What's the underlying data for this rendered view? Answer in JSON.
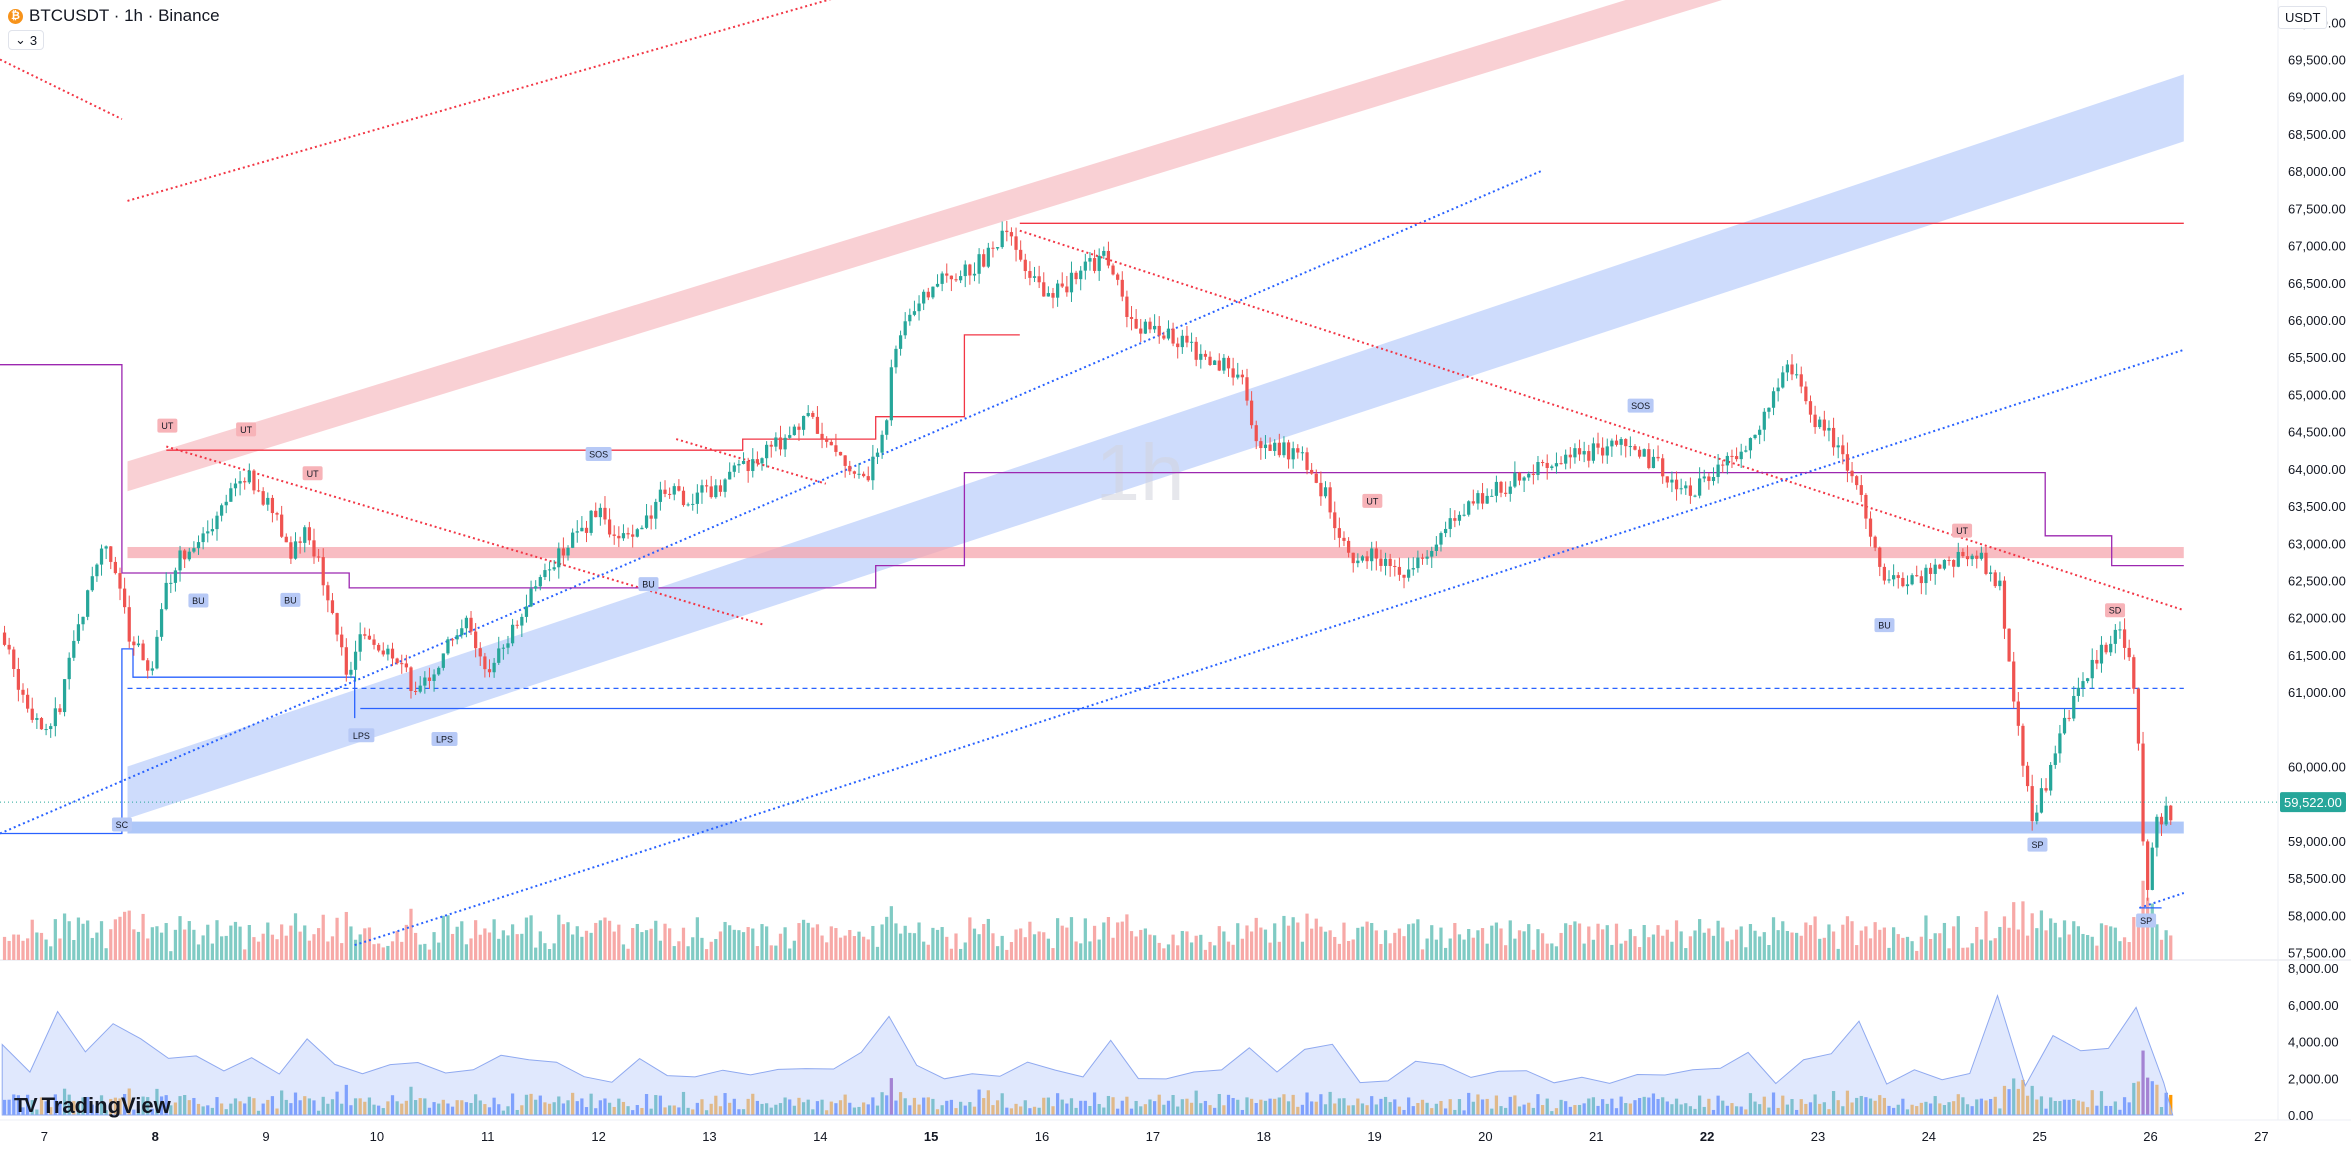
{
  "header": {
    "symbol_line": "BTCUSDT · 1h · Binance",
    "indicator_count": "3",
    "currency_unit": "USDT",
    "watermark": "1h",
    "brand": "TradingView"
  },
  "colors": {
    "up": "#26a69a",
    "down": "#ef5350",
    "blue_line": "#2962ff",
    "red_line": "#f23645",
    "purple_line": "#9c27b0",
    "blue_channel": "#c6d6fb",
    "red_channel": "#f8c8cc"
  },
  "chart_data": {
    "type": "line",
    "y_axis": {
      "ticks": [
        "70,000.00",
        "69,500.00",
        "69,000.00",
        "68,500.00",
        "68,000.00",
        "67,500.00",
        "67,000.00",
        "66,500.00",
        "66,000.00",
        "65,500.00",
        "65,000.00",
        "64,500.00",
        "64,000.00",
        "63,500.00",
        "63,000.00",
        "62,500.00",
        "62,000.00",
        "61,500.00",
        "61,000.00",
        "60,000.00",
        "59,000.00",
        "58,500.00",
        "58,000.00",
        "57,500.00"
      ],
      "range": [
        57400,
        70300
      ]
    },
    "current_price": "59,522.00",
    "current_price_value": 59522,
    "lower_pane": {
      "ticks": [
        "8,000.00",
        "6,000.00",
        "4,000.00",
        "2,000.00",
        "0.00"
      ],
      "range": [
        0,
        8000
      ]
    },
    "x_axis": {
      "ticks": [
        "7",
        "8",
        "9",
        "10",
        "11",
        "12",
        "13",
        "14",
        "15",
        "16",
        "17",
        "18",
        "19",
        "20",
        "21",
        "22",
        "23",
        "24",
        "25",
        "26",
        "27"
      ],
      "bold_ticks": [
        "8",
        "15",
        "22"
      ],
      "range": [
        6.6,
        27.15
      ]
    },
    "price_path": [
      [
        6.62,
        61800
      ],
      [
        6.85,
        60900
      ],
      [
        7.0,
        60500
      ],
      [
        7.15,
        60700
      ],
      [
        7.3,
        61700
      ],
      [
        7.45,
        62600
      ],
      [
        7.58,
        63000
      ],
      [
        7.68,
        62500
      ],
      [
        7.8,
        61700
      ],
      [
        8.0,
        61200
      ],
      [
        8.1,
        62400
      ],
      [
        8.25,
        62800
      ],
      [
        8.5,
        63200
      ],
      [
        8.8,
        64000
      ],
      [
        9.05,
        63500
      ],
      [
        9.25,
        62900
      ],
      [
        9.4,
        63200
      ],
      [
        9.55,
        62500
      ],
      [
        9.75,
        61200
      ],
      [
        9.85,
        61700
      ],
      [
        10.1,
        61600
      ],
      [
        10.35,
        61100
      ],
      [
        10.55,
        61300
      ],
      [
        10.8,
        62000
      ],
      [
        11.0,
        61200
      ],
      [
        11.2,
        61700
      ],
      [
        11.5,
        62600
      ],
      [
        11.8,
        63100
      ],
      [
        12.0,
        63400
      ],
      [
        12.3,
        63000
      ],
      [
        12.6,
        63700
      ],
      [
        12.9,
        63600
      ],
      [
        13.2,
        63900
      ],
      [
        13.6,
        64300
      ],
      [
        13.9,
        64700
      ],
      [
        14.2,
        64200
      ],
      [
        14.45,
        63900
      ],
      [
        14.6,
        64500
      ],
      [
        14.7,
        65700
      ],
      [
        14.9,
        66300
      ],
      [
        15.1,
        66500
      ],
      [
        15.5,
        66800
      ],
      [
        15.7,
        67200
      ],
      [
        15.9,
        66700
      ],
      [
        16.1,
        66300
      ],
      [
        16.35,
        66600
      ],
      [
        16.6,
        66900
      ],
      [
        16.8,
        66000
      ],
      [
        17.0,
        65900
      ],
      [
        17.3,
        65700
      ],
      [
        17.6,
        65400
      ],
      [
        17.85,
        65300
      ],
      [
        17.9,
        64500
      ],
      [
        18.1,
        64300
      ],
      [
        18.35,
        64200
      ],
      [
        18.6,
        63600
      ],
      [
        18.8,
        62700
      ],
      [
        19.0,
        62900
      ],
      [
        19.3,
        62600
      ],
      [
        19.55,
        63000
      ],
      [
        19.8,
        63400
      ],
      [
        20.1,
        63700
      ],
      [
        20.4,
        63900
      ],
      [
        20.65,
        64100
      ],
      [
        20.9,
        64200
      ],
      [
        21.1,
        64300
      ],
      [
        21.35,
        64300
      ],
      [
        21.6,
        64000
      ],
      [
        21.8,
        63700
      ],
      [
        22.0,
        63800
      ],
      [
        22.3,
        64200
      ],
      [
        22.5,
        64600
      ],
      [
        22.75,
        65500
      ],
      [
        22.95,
        64700
      ],
      [
        23.15,
        64400
      ],
      [
        23.4,
        63700
      ],
      [
        23.6,
        62500
      ],
      [
        23.8,
        62400
      ],
      [
        24.1,
        62700
      ],
      [
        24.4,
        62900
      ],
      [
        24.65,
        62500
      ],
      [
        24.8,
        60800
      ],
      [
        24.95,
        59200
      ],
      [
        25.1,
        59900
      ],
      [
        25.3,
        60800
      ],
      [
        25.55,
        61500
      ],
      [
        25.75,
        61900
      ],
      [
        25.85,
        61300
      ],
      [
        25.92,
        60100
      ],
      [
        25.98,
        58200
      ],
      [
        26.05,
        59200
      ],
      [
        26.15,
        59400
      ],
      [
        26.2,
        59300
      ]
    ],
    "bands": [
      {
        "name": "",
        "color": "red",
        "lower": [
          [
            7.75,
            63700
          ],
          [
            27.15,
            72600
          ]
        ],
        "upper": [
          [
            7.75,
            64100
          ],
          [
            27.15,
            73000
          ]
        ]
      },
      {
        "name": "",
        "color": "blue",
        "lower": [
          [
            7.75,
            59300
          ],
          [
            26.3,
            68400
          ]
        ],
        "upper": [
          [
            7.75,
            60000
          ],
          [
            26.3,
            69300
          ]
        ]
      }
    ],
    "zones": [
      {
        "color": "red",
        "x": [
          7.75,
          26.3
        ],
        "y": [
          62800,
          62950
        ]
      },
      {
        "color": "blue",
        "x": [
          7.75,
          26.3
        ],
        "y": [
          59100,
          59260
        ]
      }
    ],
    "lines": [
      {
        "color": "red",
        "style": "dotted",
        "points": [
          [
            6.6,
            69500
          ],
          [
            7.7,
            68700
          ]
        ]
      },
      {
        "color": "red",
        "style": "dotted",
        "points": [
          [
            7.75,
            67600
          ],
          [
            14.3,
            70400
          ]
        ]
      },
      {
        "color": "red",
        "style": "dotted",
        "points": [
          [
            8.1,
            64300
          ],
          [
            13.5,
            61900
          ]
        ]
      },
      {
        "color": "red",
        "style": "dotted",
        "points": [
          [
            12.7,
            64400
          ],
          [
            14.05,
            63800
          ]
        ]
      },
      {
        "color": "red",
        "style": "dotted",
        "points": [
          [
            15.8,
            67200
          ],
          [
            26.3,
            62100
          ]
        ]
      },
      {
        "color": "blue",
        "style": "dotted",
        "points": [
          [
            6.6,
            59100
          ],
          [
            20.5,
            68000
          ]
        ]
      },
      {
        "color": "blue",
        "style": "dotted",
        "points": [
          [
            9.8,
            57600
          ],
          [
            26.3,
            65600
          ]
        ]
      },
      {
        "color": "blue",
        "style": "dotted",
        "points": [
          [
            25.9,
            58100
          ],
          [
            26.3,
            58300
          ]
        ]
      },
      {
        "color": "red",
        "style": "solid",
        "points": [
          [
            15.8,
            67300
          ],
          [
            26.3,
            67300
          ]
        ]
      },
      {
        "color": "red",
        "style": "solid",
        "points": [
          [
            8.1,
            64250
          ],
          [
            13.3,
            64250
          ],
          [
            13.3,
            64400
          ],
          [
            14.5,
            64400
          ],
          [
            14.5,
            64700
          ],
          [
            15.3,
            64700
          ],
          [
            15.3,
            65800
          ],
          [
            15.8,
            65800
          ]
        ]
      },
      {
        "color": "blue",
        "style": "solid",
        "points": [
          [
            9.85,
            60780
          ],
          [
            25.9,
            60780
          ]
        ]
      },
      {
        "color": "blue",
        "style": "solid",
        "points": [
          [
            6.6,
            59100
          ],
          [
            7.7,
            59100
          ],
          [
            7.7,
            61580
          ],
          [
            7.8,
            61580
          ],
          [
            7.8,
            61200
          ],
          [
            9.8,
            61200
          ],
          [
            9.8,
            60650
          ]
        ]
      },
      {
        "color": "blue",
        "style": "solid",
        "points": [
          [
            25.9,
            58100
          ],
          [
            26.1,
            58100
          ]
        ]
      },
      {
        "color": "blue",
        "style": "dashed",
        "points": [
          [
            7.75,
            61050
          ],
          [
            26.3,
            61050
          ]
        ]
      },
      {
        "color": "purple",
        "style": "solid",
        "points": [
          [
            6.6,
            65400
          ],
          [
            7.7,
            65400
          ],
          [
            7.7,
            62600
          ],
          [
            9.75,
            62600
          ],
          [
            9.75,
            62400
          ],
          [
            14.5,
            62400
          ],
          [
            14.5,
            62700
          ],
          [
            15.3,
            62700
          ],
          [
            15.3,
            63950
          ],
          [
            25.05,
            63950
          ],
          [
            25.05,
            63100
          ],
          [
            25.65,
            63100
          ],
          [
            25.65,
            62700
          ],
          [
            26.3,
            62700
          ]
        ]
      }
    ],
    "labels": [
      {
        "text": "UT",
        "color": "red",
        "x": 8.11,
        "y": 64580
      },
      {
        "text": "UT",
        "color": "red",
        "x": 8.82,
        "y": 64530
      },
      {
        "text": "UT",
        "color": "red",
        "x": 9.42,
        "y": 63940
      },
      {
        "text": "BU",
        "color": "blue",
        "x": 8.39,
        "y": 62230
      },
      {
        "text": "BU",
        "color": "blue",
        "x": 9.22,
        "y": 62240
      },
      {
        "text": "SOS",
        "color": "blue",
        "x": 12.0,
        "y": 64200
      },
      {
        "text": "BU",
        "color": "blue",
        "x": 12.45,
        "y": 62450
      },
      {
        "text": "LPS",
        "color": "blue",
        "x": 9.86,
        "y": 60420
      },
      {
        "text": "LPS",
        "color": "blue",
        "x": 10.61,
        "y": 60370
      },
      {
        "text": "SC",
        "color": "blue",
        "x": 7.7,
        "y": 59220
      },
      {
        "text": "UT",
        "color": "red",
        "x": 18.98,
        "y": 63570
      },
      {
        "text": "SOS",
        "color": "blue",
        "x": 21.4,
        "y": 64850
      },
      {
        "text": "BU",
        "color": "blue",
        "x": 23.6,
        "y": 61900
      },
      {
        "text": "UT",
        "color": "red",
        "x": 24.3,
        "y": 63170
      },
      {
        "text": "SD",
        "color": "red",
        "x": 25.68,
        "y": 62100
      },
      {
        "text": "SP",
        "color": "blue",
        "x": 24.98,
        "y": 58950
      },
      {
        "text": "SP",
        "color": "blue",
        "x": 25.96,
        "y": 57930
      }
    ]
  }
}
